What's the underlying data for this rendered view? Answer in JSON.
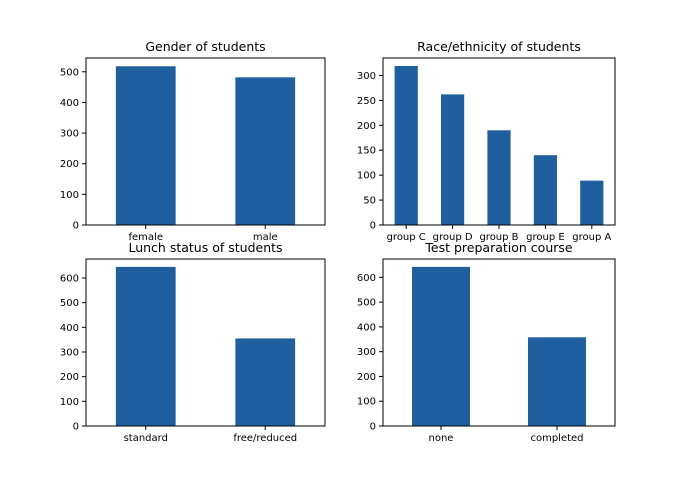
{
  "chart_data": [
    {
      "type": "bar",
      "title": "Gender of students",
      "categories": [
        "female",
        "male"
      ],
      "values": [
        518,
        482
      ],
      "ylim": [
        0,
        545
      ],
      "yticks": [
        0,
        100,
        200,
        300,
        400,
        500
      ],
      "xlabel": "",
      "ylabel": "",
      "grid": false,
      "color": "#1f5fa0"
    },
    {
      "type": "bar",
      "title": "Race/ethnicity of students",
      "categories": [
        "group C",
        "group D",
        "group B",
        "group E",
        "group A"
      ],
      "values": [
        319,
        262,
        190,
        140,
        89
      ],
      "ylim": [
        0,
        335
      ],
      "yticks": [
        0,
        50,
        100,
        150,
        200,
        250,
        300
      ],
      "xlabel": "",
      "ylabel": "",
      "grid": false,
      "color": "#1f5fa0"
    },
    {
      "type": "bar",
      "title": "Lunch status of students",
      "categories": [
        "standard",
        "free/reduced"
      ],
      "values": [
        645,
        355
      ],
      "ylim": [
        0,
        677
      ],
      "yticks": [
        0,
        100,
        200,
        300,
        400,
        500,
        600
      ],
      "xlabel": "",
      "ylabel": "",
      "grid": false,
      "color": "#1f5fa0"
    },
    {
      "type": "bar",
      "title": "Test preparation course",
      "categories": [
        "none",
        "completed"
      ],
      "values": [
        642,
        358
      ],
      "ylim": [
        0,
        674
      ],
      "yticks": [
        0,
        100,
        200,
        300,
        400,
        500,
        600
      ],
      "xlabel": "",
      "ylabel": "",
      "grid": false,
      "color": "#1f5fa0"
    }
  ]
}
